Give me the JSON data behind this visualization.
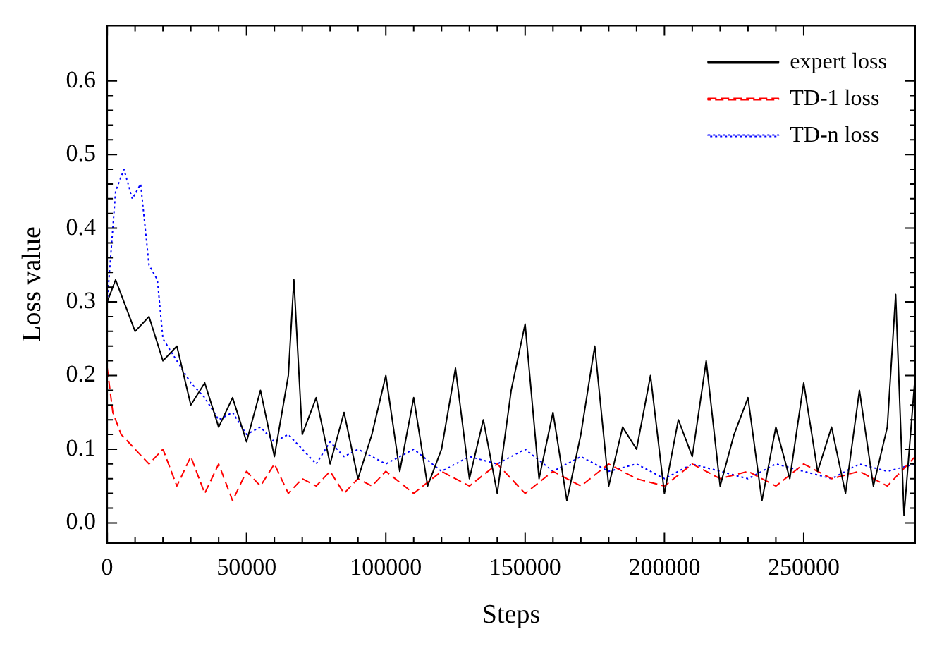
{
  "chart_data": {
    "type": "line",
    "xlabel": "Steps",
    "ylabel": "Loss value",
    "xlim": [
      0,
      290000
    ],
    "xticks": [
      0,
      50000,
      100000,
      150000,
      200000,
      250000
    ],
    "ylim": [
      -0.027,
      0.675
    ],
    "yticks": [
      {
        "value": 0,
        "label": "0.0"
      },
      0.1,
      0.2,
      0.3,
      0.4,
      0.5,
      0.6
    ],
    "grid": false,
    "legend": "top right",
    "marker": "none",
    "series": [
      {
        "name": "expert loss",
        "color": "#000000",
        "line_style": "solid",
        "x": [
          0,
          3000,
          5000,
          10000,
          15000,
          20000,
          25000,
          30000,
          35000,
          40000,
          45000,
          50000,
          55000,
          60000,
          65000,
          67000,
          70000,
          75000,
          80000,
          85000,
          90000,
          95000,
          100000,
          105000,
          110000,
          115000,
          120000,
          125000,
          130000,
          135000,
          140000,
          145000,
          150000,
          155000,
          160000,
          165000,
          170000,
          175000,
          180000,
          185000,
          190000,
          195000,
          200000,
          205000,
          210000,
          215000,
          220000,
          225000,
          230000,
          235000,
          240000,
          245000,
          250000,
          255000,
          260000,
          265000,
          270000,
          275000,
          280000,
          283000,
          286000,
          290000
        ],
        "values": [
          0.3,
          0.33,
          0.31,
          0.26,
          0.28,
          0.22,
          0.24,
          0.16,
          0.19,
          0.13,
          0.17,
          0.11,
          0.18,
          0.09,
          0.2,
          0.33,
          0.12,
          0.17,
          0.08,
          0.15,
          0.06,
          0.12,
          0.2,
          0.07,
          0.17,
          0.05,
          0.1,
          0.21,
          0.06,
          0.14,
          0.04,
          0.18,
          0.27,
          0.06,
          0.15,
          0.03,
          0.12,
          0.24,
          0.05,
          0.13,
          0.1,
          0.2,
          0.04,
          0.14,
          0.09,
          0.22,
          0.05,
          0.12,
          0.17,
          0.03,
          0.13,
          0.06,
          0.19,
          0.07,
          0.13,
          0.04,
          0.18,
          0.05,
          0.13,
          0.31,
          0.01,
          0.2
        ]
      },
      {
        "name": "TD-1 loss",
        "color": "#ff0000",
        "line_style": "dashed",
        "x": [
          0,
          2000,
          5000,
          10000,
          15000,
          20000,
          25000,
          30000,
          35000,
          40000,
          45000,
          50000,
          55000,
          60000,
          65000,
          70000,
          75000,
          80000,
          85000,
          90000,
          95000,
          100000,
          110000,
          120000,
          130000,
          140000,
          150000,
          160000,
          170000,
          180000,
          190000,
          200000,
          210000,
          220000,
          230000,
          240000,
          250000,
          260000,
          270000,
          280000,
          290000
        ],
        "values": [
          0.21,
          0.15,
          0.12,
          0.1,
          0.08,
          0.1,
          0.05,
          0.09,
          0.04,
          0.08,
          0.03,
          0.07,
          0.05,
          0.08,
          0.04,
          0.06,
          0.05,
          0.07,
          0.04,
          0.06,
          0.05,
          0.07,
          0.04,
          0.07,
          0.05,
          0.08,
          0.04,
          0.07,
          0.05,
          0.08,
          0.06,
          0.05,
          0.08,
          0.06,
          0.07,
          0.05,
          0.08,
          0.06,
          0.07,
          0.05,
          0.09
        ]
      },
      {
        "name": "TD-n loss",
        "color": "#0000ff",
        "line_style": "dotted",
        "x": [
          0,
          3000,
          6000,
          9000,
          12000,
          15000,
          18000,
          20000,
          25000,
          30000,
          35000,
          40000,
          45000,
          50000,
          55000,
          60000,
          65000,
          70000,
          75000,
          80000,
          85000,
          90000,
          100000,
          110000,
          120000,
          130000,
          140000,
          150000,
          160000,
          170000,
          180000,
          190000,
          200000,
          210000,
          220000,
          230000,
          240000,
          250000,
          260000,
          270000,
          280000,
          290000
        ],
        "values": [
          0.3,
          0.45,
          0.48,
          0.44,
          0.46,
          0.35,
          0.33,
          0.25,
          0.22,
          0.19,
          0.17,
          0.14,
          0.15,
          0.12,
          0.13,
          0.11,
          0.12,
          0.1,
          0.08,
          0.11,
          0.09,
          0.1,
          0.08,
          0.1,
          0.07,
          0.09,
          0.08,
          0.1,
          0.07,
          0.09,
          0.07,
          0.08,
          0.06,
          0.08,
          0.07,
          0.06,
          0.08,
          0.07,
          0.06,
          0.08,
          0.07,
          0.08
        ]
      }
    ]
  }
}
